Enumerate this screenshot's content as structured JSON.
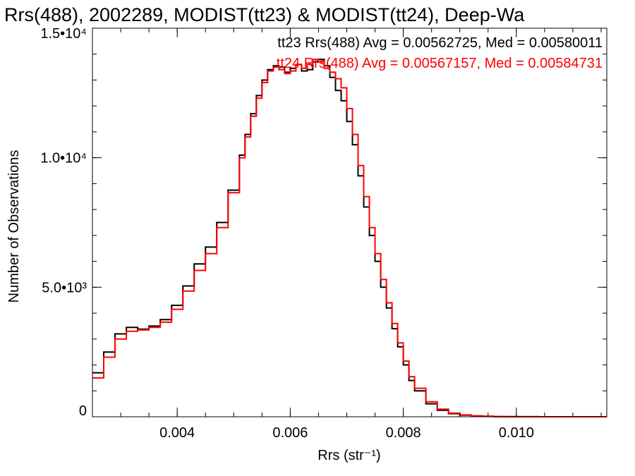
{
  "chart_data": {
    "type": "line",
    "title": "Rrs(488), 2002289, MODIST(tt23) & MODIST(tt24), Deep-Wa",
    "xlabel": "Rrs (str⁻¹)",
    "ylabel": "Number of Observations",
    "xlim": [
      0.0025,
      0.0116
    ],
    "ylim": [
      0,
      15000
    ],
    "x_ticks": [
      {
        "value": 0.004,
        "label": "0.004"
      },
      {
        "value": 0.006,
        "label": "0.006"
      },
      {
        "value": 0.008,
        "label": "0.008"
      },
      {
        "value": 0.01,
        "label": "0.010"
      }
    ],
    "y_ticks": [
      {
        "value": 0,
        "label": "0"
      },
      {
        "value": 5000,
        "label": "5.0•10³"
      },
      {
        "value": 10000,
        "label": "1.0•10⁴"
      },
      {
        "value": 15000,
        "label": "1.5•10⁴"
      }
    ],
    "x_minor_step": 0.0005,
    "y_minor_step": 1000,
    "step_style": "histogram",
    "grid": false,
    "legend": "top-right",
    "series": [
      {
        "name": "tt23",
        "legend_text": "tt23 Rrs(488) Avg = 0.00562725, Med = 0.00580011",
        "color": "#000000",
        "x": [
          0.0025,
          0.0027,
          0.0029,
          0.0031,
          0.0033,
          0.0035,
          0.0037,
          0.0039,
          0.0041,
          0.0043,
          0.0045,
          0.0047,
          0.0049,
          0.0051,
          0.0052,
          0.0053,
          0.0054,
          0.0055,
          0.0056,
          0.0057,
          0.0058,
          0.0059,
          0.006,
          0.0061,
          0.0062,
          0.0063,
          0.0064,
          0.0065,
          0.0066,
          0.0067,
          0.0068,
          0.0069,
          0.007,
          0.0071,
          0.0072,
          0.0073,
          0.0074,
          0.0075,
          0.0076,
          0.0077,
          0.0078,
          0.0079,
          0.008,
          0.0081,
          0.0082,
          0.0084,
          0.0086,
          0.0088,
          0.009,
          0.0092,
          0.0094,
          0.0096,
          0.0098,
          0.01,
          0.0104,
          0.0108,
          0.0112,
          0.0116
        ],
        "y": [
          1700,
          2500,
          3200,
          3450,
          3380,
          3500,
          3750,
          4300,
          5050,
          5900,
          6550,
          7500,
          8750,
          10100,
          10900,
          11700,
          12400,
          13000,
          13400,
          13550,
          13500,
          13300,
          13450,
          13600,
          13350,
          13400,
          13700,
          13800,
          13550,
          13100,
          12600,
          12200,
          11400,
          10500,
          9300,
          8100,
          7000,
          6000,
          5000,
          4200,
          3400,
          2700,
          2000,
          1400,
          1000,
          500,
          250,
          120,
          60,
          30,
          15,
          8,
          4,
          2,
          1,
          0,
          0,
          0
        ]
      },
      {
        "name": "tt24",
        "legend_text": "tt24 Rrs(488) Avg = 0.00567157, Med = 0.00584731",
        "color": "#ff0000",
        "x": [
          0.0025,
          0.0027,
          0.0029,
          0.0031,
          0.0033,
          0.0035,
          0.0037,
          0.0039,
          0.0041,
          0.0043,
          0.0045,
          0.0047,
          0.0049,
          0.0051,
          0.0052,
          0.0053,
          0.0054,
          0.0055,
          0.0056,
          0.0057,
          0.0058,
          0.0059,
          0.006,
          0.0061,
          0.0062,
          0.0063,
          0.0064,
          0.0065,
          0.0066,
          0.0067,
          0.0068,
          0.0069,
          0.007,
          0.0071,
          0.0072,
          0.0073,
          0.0074,
          0.0075,
          0.0076,
          0.0077,
          0.0078,
          0.0079,
          0.008,
          0.0081,
          0.0082,
          0.0084,
          0.0086,
          0.0088,
          0.009,
          0.0092,
          0.0094,
          0.0096,
          0.0098,
          0.01,
          0.0104,
          0.0108,
          0.0112,
          0.0116
        ],
        "y": [
          1500,
          2300,
          3000,
          3300,
          3350,
          3450,
          3650,
          4150,
          4850,
          5650,
          6300,
          7300,
          8650,
          10000,
          10800,
          11600,
          12300,
          12900,
          13350,
          13500,
          13400,
          13250,
          13350,
          13600,
          13450,
          13600,
          13800,
          13700,
          13450,
          13300,
          13050,
          12700,
          11900,
          10900,
          9700,
          8500,
          7300,
          6300,
          5300,
          4400,
          3600,
          2850,
          2150,
          1550,
          1100,
          580,
          290,
          140,
          70,
          35,
          18,
          9,
          5,
          2,
          1,
          0,
          0,
          0
        ]
      }
    ]
  }
}
